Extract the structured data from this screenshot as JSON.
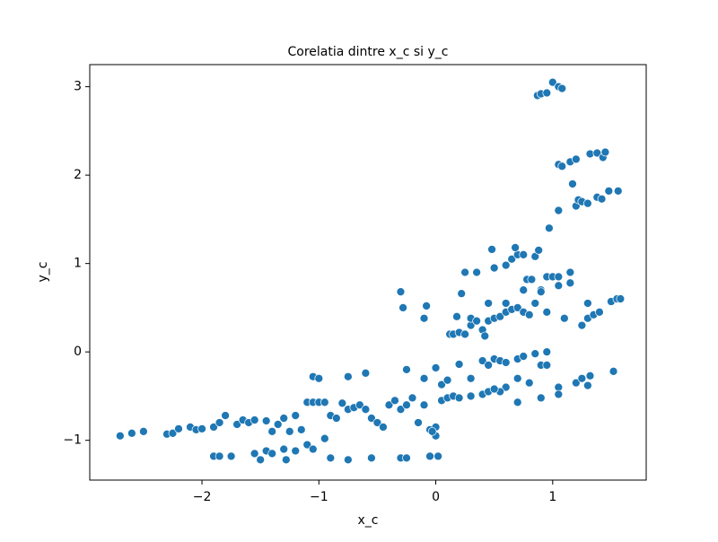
{
  "chart_data": {
    "type": "scatter",
    "title": "Corelatia dintre x_c si y_c",
    "x_label": "x_c",
    "y_label": "y_c",
    "color": "#1f77b4",
    "xlim": [
      -2.96,
      1.8
    ],
    "ylim": [
      -1.45,
      3.25
    ],
    "xticks": [
      {
        "value": -2,
        "label": "−2"
      },
      {
        "value": -1,
        "label": "−1"
      },
      0,
      1
    ],
    "yticks": [
      {
        "value": -1,
        "label": "−1"
      },
      0,
      1,
      2,
      3
    ],
    "x": [
      -2.7,
      -2.6,
      -2.5,
      -2.3,
      -2.25,
      -2.2,
      -2.1,
      -2.05,
      -2.0,
      -1.9,
      -1.85,
      -1.8,
      -1.7,
      -1.65,
      -1.6,
      -1.55,
      -1.45,
      -1.4,
      -1.35,
      -1.3,
      -1.25,
      -1.2,
      -1.15,
      -1.1,
      -1.05,
      -1.0,
      -0.95,
      -0.9,
      -0.85,
      -0.8,
      -0.75,
      -0.7,
      -0.65,
      -0.6,
      -0.55,
      -0.5,
      -0.45,
      -0.4,
      -0.35,
      -0.3,
      -0.25,
      -0.2,
      -0.15,
      -0.1,
      -0.05,
      0,
      0.05,
      0.1,
      0.15,
      0.2,
      0.3,
      0.4,
      0.45,
      -1.9,
      -1.85,
      -1.75,
      -1.55,
      -1.5,
      -1.45,
      -1.4,
      -1.3,
      -1.28,
      -1.2,
      -1.1,
      -1.05,
      -0.95,
      -0.9,
      -0.75,
      -0.55,
      -0.3,
      -0.25,
      -0.05,
      0.02,
      0.0,
      -0.03,
      -1.05,
      -1.0,
      -0.75,
      -0.6,
      -0.25,
      -0.1,
      0,
      0.05,
      0.1,
      0.2,
      0.3,
      0.12,
      0.15,
      0.2,
      0.25,
      0.3,
      0.3,
      0.35,
      0.4,
      0.42,
      0.45,
      0.5,
      0.55,
      0.6,
      0.65,
      0.7,
      0.75,
      0.8,
      0.85,
      0.9,
      0.95,
      1.1,
      0.25,
      0.35,
      0.5,
      0.6,
      0.65,
      0.7,
      0.75,
      0.85,
      0.88,
      0.68,
      0.48,
      0.95,
      1.0,
      1.05,
      1.15,
      1.15,
      1.05,
      0.9,
      0.45,
      0.6,
      0.75,
      0.78,
      0.82,
      1.05,
      0.97,
      1.2,
      1.22,
      1.25,
      1.3,
      1.38,
      1.42,
      1.48,
      1.56,
      1.17,
      1.05,
      1.08,
      1.15,
      1.2,
      1.32,
      1.38,
      1.43,
      1.45,
      0.87,
      0.9,
      0.95,
      1.0,
      1.05,
      1.08,
      1.25,
      1.3,
      1.35,
      1.4,
      1.5,
      1.55,
      1.58,
      1.3,
      1.2,
      1.25,
      1.3,
      1.32,
      1.52,
      1.05,
      1.05,
      0.9,
      0.7,
      0.6,
      0.55,
      0.5,
      0.5,
      0.55,
      0.6,
      0.7,
      0.75,
      0.85,
      0.9,
      0.95,
      0.95,
      0.8,
      0.7,
      0.4,
      0.45,
      -0.3,
      -0.28,
      -0.08,
      -0.1,
      0.18,
      0.22
    ],
    "y": [
      -0.95,
      -0.92,
      -0.9,
      -0.93,
      -0.92,
      -0.87,
      -0.85,
      -0.88,
      -0.87,
      -0.85,
      -0.8,
      -0.72,
      -0.82,
      -0.77,
      -0.8,
      -0.77,
      -0.78,
      -0.9,
      -0.82,
      -0.75,
      -0.9,
      -0.72,
      -0.88,
      -0.57,
      -0.57,
      -0.57,
      -0.57,
      -0.72,
      -0.75,
      -0.58,
      -0.65,
      -0.63,
      -0.6,
      -0.65,
      -0.75,
      -0.8,
      -0.85,
      -0.6,
      -0.55,
      -0.65,
      -0.6,
      -0.52,
      -0.8,
      -0.6,
      -0.88,
      -0.85,
      -0.55,
      -0.52,
      -0.5,
      -0.52,
      -0.5,
      -0.48,
      -0.45,
      -1.18,
      -1.18,
      -1.18,
      -1.15,
      -1.22,
      -1.12,
      -1.15,
      -1.1,
      -1.22,
      -1.12,
      -1.05,
      -1.1,
      -0.98,
      -1.2,
      -1.22,
      -1.2,
      -1.2,
      -1.2,
      -1.18,
      -1.18,
      -0.95,
      -0.9,
      -0.28,
      -0.3,
      -0.28,
      -0.24,
      -0.2,
      -0.3,
      -0.18,
      -0.37,
      -0.32,
      -0.14,
      -0.3,
      0.2,
      0.2,
      0.22,
      0.2,
      0.3,
      0.38,
      0.35,
      0.25,
      0.18,
      0.35,
      0.38,
      0.4,
      0.45,
      0.48,
      0.5,
      0.45,
      0.42,
      0.55,
      0.7,
      0.45,
      0.38,
      0.9,
      0.9,
      0.95,
      0.98,
      1.05,
      1.1,
      1.1,
      1.08,
      1.15,
      1.18,
      1.16,
      0.85,
      0.85,
      0.85,
      0.9,
      0.78,
      0.75,
      0.68,
      0.55,
      0.55,
      0.7,
      0.82,
      0.82,
      1.6,
      1.4,
      1.65,
      1.72,
      1.7,
      1.68,
      1.75,
      1.73,
      1.82,
      1.82,
      1.9,
      2.12,
      2.1,
      2.15,
      2.18,
      2.24,
      2.25,
      2.2,
      2.26,
      2.9,
      2.92,
      2.93,
      3.05,
      3.0,
      2.98,
      0.3,
      0.38,
      0.42,
      0.45,
      0.57,
      0.6,
      0.6,
      0.55,
      -0.35,
      -0.3,
      -0.38,
      -0.27,
      -0.22,
      -0.4,
      -0.48,
      -0.52,
      -0.57,
      -0.4,
      -0.45,
      -0.42,
      -0.08,
      -0.1,
      -0.12,
      -0.08,
      -0.05,
      -0.02,
      -0.15,
      -0.15,
      0.0,
      -0.35,
      -0.3,
      -0.1,
      -0.15,
      0.68,
      0.5,
      0.52,
      0.38,
      0.4,
      0.66
    ]
  }
}
